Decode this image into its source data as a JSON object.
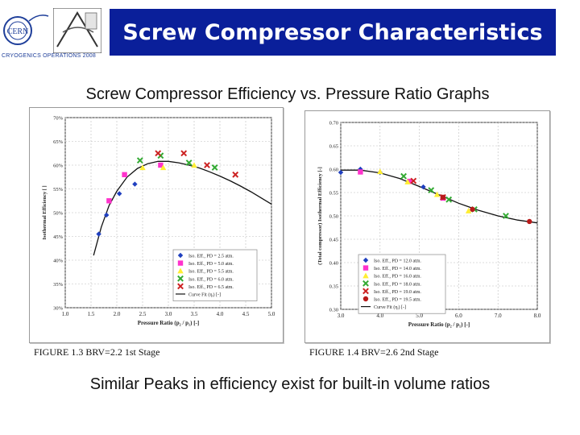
{
  "header": {
    "title": "Screw Compressor Characteristics",
    "logo_text": "CERN",
    "logo_caption": "CRYOGENICS OPERATIONS 2008"
  },
  "subtitle": "Screw Compressor Efficiency vs. Pressure Ratio Graphs",
  "footer_note": "Similar Peaks in efficiency exist for built-in volume ratios",
  "colors": {
    "title_bg": "#0a1f9a",
    "series": [
      "#1f3fbf",
      "#ff33cc",
      "#ffee33",
      "#33aa33",
      "#cc2222",
      "#b81a1a"
    ]
  },
  "chart_data": [
    {
      "type": "scatter",
      "caption": "FIGURE 1.3   BRV=2.2  1st Stage",
      "xlabel": "Pressure Ratio (p₂ / p₁) [-]",
      "ylabel": "Isothermal Efficiency [ ]",
      "xlim": [
        1.0,
        5.0
      ],
      "ylim": [
        30,
        70
      ],
      "xticks": [
        1.0,
        1.5,
        2.0,
        2.5,
        3.0,
        3.5,
        4.0,
        4.5,
        5.0
      ],
      "xtick_labels": [
        "1.0",
        "1.5",
        "2.0",
        "2.5",
        "3.0",
        "3.5",
        "4.0",
        "4.5",
        "5.0"
      ],
      "yticks": [
        30,
        35,
        40,
        45,
        50,
        55,
        60,
        65,
        70
      ],
      "ytick_labels": [
        "30%",
        "35%",
        "40%",
        "45%",
        "50%",
        "55%",
        "60%",
        "65%",
        "70%"
      ],
      "series": [
        {
          "name": "Iso. Eff., PD = 2.5 atm.",
          "marker": "diamond",
          "color": "#1f3fbf",
          "x": [
            1.65,
            1.8,
            2.05,
            2.35
          ],
          "y": [
            45.5,
            49.5,
            54,
            56
          ]
        },
        {
          "name": "Iso. Eff., PD = 5.0 atm.",
          "marker": "square",
          "color": "#ff33cc",
          "x": [
            1.85,
            2.15,
            2.85
          ],
          "y": [
            52.5,
            58,
            60
          ]
        },
        {
          "name": "Iso. Eff., PD = 5.5 atm.",
          "marker": "triangle",
          "color": "#ffee33",
          "x": [
            2.5,
            2.9,
            3.5
          ],
          "y": [
            59.5,
            59.5,
            60
          ]
        },
        {
          "name": "Iso. Eff., PD = 6.0 atm.",
          "marker": "x",
          "color": "#33aa33",
          "x": [
            2.45,
            2.85,
            3.4,
            3.9
          ],
          "y": [
            61,
            62,
            60.5,
            59.5
          ]
        },
        {
          "name": "Iso. Eff., PD = 6.5 atm.",
          "marker": "x",
          "color": "#cc2222",
          "x": [
            2.8,
            3.3,
            3.75,
            4.3
          ],
          "y": [
            62.5,
            62.5,
            60,
            58
          ]
        }
      ],
      "curve": {
        "name": "Curve Fit (ηᵢ) [-]",
        "x": [
          1.55,
          1.7,
          1.85,
          2.0,
          2.2,
          2.4,
          2.6,
          2.8,
          3.0,
          3.2,
          3.4,
          3.6,
          3.8,
          4.0,
          4.2,
          4.4,
          4.6,
          4.8,
          5.0
        ],
        "y": [
          41,
          47,
          51.5,
          54.5,
          57.5,
          59.3,
          60.3,
          60.8,
          60.8,
          60.5,
          60.0,
          59.4,
          58.6,
          57.7,
          56.7,
          55.6,
          54.4,
          53.1,
          51.8
        ]
      }
    },
    {
      "type": "scatter",
      "caption": "FIGURE 1.4   BRV=2.6  2nd Stage",
      "xlabel": "Pressure Ratio (p₂ / p₁) [-]",
      "ylabel": "(Total compressor) Isothermal Efficiency [-]",
      "xlim": [
        3.0,
        8.0
      ],
      "ylim": [
        0.3,
        0.7
      ],
      "xticks": [
        3.0,
        4.0,
        5.0,
        6.0,
        7.0,
        8.0
      ],
      "xtick_labels": [
        "3.0",
        "4.0",
        "5.0",
        "6.0",
        "7.0",
        "8.0"
      ],
      "yticks": [
        0.3,
        0.35,
        0.4,
        0.45,
        0.5,
        0.55,
        0.6,
        0.65,
        0.7
      ],
      "ytick_labels": [
        "0.30",
        "0.35",
        "0.40",
        "0.45",
        "0.50",
        "0.55",
        "0.60",
        "0.65",
        "0.70"
      ],
      "series": [
        {
          "name": "Iso. Eff., PD = 12.0 atm.",
          "marker": "diamond",
          "color": "#1f3fbf",
          "x": [
            3.0,
            3.5,
            4.0,
            5.1
          ],
          "y": [
            0.593,
            0.6,
            0.593,
            0.562
          ]
        },
        {
          "name": "Iso. Eff., PD = 14.0 atm.",
          "marker": "square",
          "color": "#ff33cc",
          "x": [
            3.5,
            4.75,
            5.6
          ],
          "y": [
            0.594,
            0.574,
            0.538
          ]
        },
        {
          "name": "Iso. Eff., PD = 16.0 atm.",
          "marker": "triangle",
          "color": "#ffee33",
          "x": [
            4.0,
            4.7,
            5.45,
            6.25
          ],
          "y": [
            0.595,
            0.573,
            0.546,
            0.511
          ]
        },
        {
          "name": "Iso. Eff., PD = 18.0 atm.",
          "marker": "x",
          "color": "#33aa33",
          "x": [
            4.6,
            5.3,
            5.75,
            6.4,
            7.2
          ],
          "y": [
            0.585,
            0.555,
            0.535,
            0.514,
            0.5
          ]
        },
        {
          "name": "Iso. Eff., PD = 19.0 atm.",
          "marker": "x",
          "color": "#cc2222",
          "x": [
            4.85,
            5.6
          ],
          "y": [
            0.575,
            0.54
          ]
        },
        {
          "name": "Iso. Eff., PD = 19.5 atm.",
          "marker": "circle",
          "color": "#b81a1a",
          "x": [
            5.6,
            6.35,
            7.8
          ],
          "y": [
            0.54,
            0.514,
            0.488
          ]
        }
      ],
      "curve": {
        "name": "Curve Fit (ηᵢ) [-]",
        "x": [
          3.0,
          3.5,
          4.0,
          4.5,
          5.0,
          5.5,
          6.0,
          6.5,
          7.0,
          7.5,
          8.0
        ],
        "y": [
          0.598,
          0.598,
          0.592,
          0.58,
          0.563,
          0.545,
          0.527,
          0.512,
          0.5,
          0.491,
          0.485
        ]
      }
    }
  ]
}
